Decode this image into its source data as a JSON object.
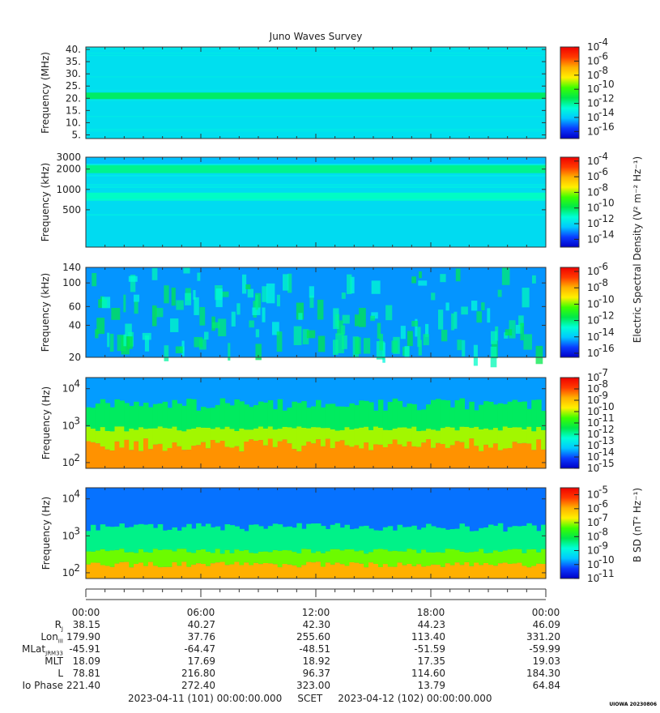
{
  "title": "Juno Waves Survey",
  "footer_tag": "UIOWA 20230806",
  "colorbar_shared_label": "Electric Spectral Density (V² m⁻² Hz⁻¹)",
  "colorbar_b_label": "B SD (nT² Hz⁻¹)",
  "colors": [
    "#0000c8",
    "#0a3cff",
    "#00c8ff",
    "#00ffd8",
    "#00e84a",
    "#3cff00",
    "#fff000",
    "#ffb000",
    "#ff3a00",
    "#f00000"
  ],
  "time_ticks": [
    "00:00",
    "06:00",
    "12:00",
    "18:00",
    "00:00"
  ],
  "ephemeris": [
    {
      "label": "R",
      "sub": "J",
      "values": [
        "38.15",
        "40.27",
        "42.30",
        "44.23",
        "46.09"
      ]
    },
    {
      "label": "Lon",
      "sub": "III",
      "values": [
        "179.90",
        "37.76",
        "255.60",
        "113.40",
        "331.20"
      ]
    },
    {
      "label": "MLat",
      "sub": "JRM33",
      "values": [
        "-45.91",
        "-64.47",
        "-48.51",
        "-51.59",
        "-59.99"
      ]
    },
    {
      "label": "MLT",
      "sub": "",
      "values": [
        "18.09",
        "17.69",
        "18.92",
        "17.35",
        "19.03"
      ]
    },
    {
      "label": "L",
      "sub": "",
      "values": [
        "78.81",
        "216.80",
        "96.37",
        "114.60",
        "184.30"
      ]
    },
    {
      "label": "Io Phase",
      "sub": "",
      "values": [
        "221.40",
        "272.40",
        "323.00",
        "13.79",
        "64.84"
      ]
    }
  ],
  "scet_text": "2023-04-11 (101) 00:00:00.000     SCET     2023-04-12 (102) 00:00:00.000",
  "chart_data": [
    {
      "type": "heatmap",
      "name": "HFR high",
      "ylabel": "Frequency (MHz)",
      "yscale": "linear",
      "ylim": [
        3.5,
        41
      ],
      "yticks": [
        "40.",
        "35.",
        "30.",
        "25.",
        "20.",
        "15.",
        "10.",
        "5."
      ],
      "ytick_values": [
        40,
        35,
        30,
        25,
        20,
        15,
        10,
        5
      ],
      "colorbar": {
        "ticks": [
          "-4",
          "-6",
          "-8",
          "-10",
          "-12",
          "-14",
          "-16"
        ],
        "range_log10": [
          -17,
          -4
        ]
      },
      "dominant_level_log10": -13.5,
      "bands": [
        {
          "freq_MHz": 21,
          "level_log10": -11.5
        }
      ]
    },
    {
      "type": "heatmap",
      "name": "HFR low",
      "ylabel": "Frequency (kHz)",
      "yscale": "log",
      "ylim": [
        140,
        3000
      ],
      "yticks": [
        "3000",
        "2000",
        "1000",
        "500"
      ],
      "ytick_values": [
        3000,
        2000,
        1000,
        500
      ],
      "colorbar": {
        "ticks": [
          "-4",
          "-6",
          "-8",
          "-10",
          "-12",
          "-14"
        ],
        "range_log10": [
          -15,
          -3.5
        ]
      },
      "dominant_level_log10": -12,
      "bands": [
        {
          "freq_kHz": 2000,
          "level_log10": -10.5
        },
        {
          "freq_kHz": 780,
          "level_log10": -11
        }
      ]
    },
    {
      "type": "heatmap",
      "name": "LFR high",
      "ylabel": "Frequency (kHz)",
      "yscale": "log",
      "ylim": [
        20,
        140
      ],
      "yticks": [
        "140",
        "100",
        "60",
        "40",
        "20"
      ],
      "ytick_values": [
        140,
        100,
        60,
        40,
        20
      ],
      "colorbar": {
        "ticks": [
          "-6",
          "-8",
          "-10",
          "-12",
          "-14",
          "-16"
        ],
        "range_log10": [
          -16.5,
          -5.5
        ]
      },
      "dominant_level_log10": -14.5,
      "note": "patchy emission streaks near 1e-13"
    },
    {
      "type": "heatmap",
      "name": "E low",
      "ylabel": "Frequency (Hz)",
      "yscale": "log",
      "ylim": [
        70,
        20000
      ],
      "yticks": [
        "10",
        "10",
        "10"
      ],
      "ytick_exponents": [
        "4",
        "3",
        "2"
      ],
      "ytick_values": [
        10000,
        1000,
        100
      ],
      "colorbar": {
        "ticks": [
          "-7",
          "-8",
          "-9",
          "-10",
          "-11",
          "-12",
          "-13",
          "-14",
          "-15"
        ],
        "range_log10": [
          -15,
          -7
        ]
      },
      "dominant_level_log10": -13.5,
      "low_freq_level_log10": -8
    },
    {
      "type": "heatmap",
      "name": "B",
      "ylabel": "Frequency (Hz)",
      "yscale": "log",
      "ylim": [
        70,
        20000
      ],
      "yticks": [
        "10",
        "10",
        "10"
      ],
      "ytick_exponents": [
        "4",
        "3",
        "2"
      ],
      "ytick_values": [
        10000,
        1000,
        100
      ],
      "colorbar": {
        "ticks": [
          "-5",
          "-6",
          "-7",
          "-8",
          "-9",
          "-10",
          "-11"
        ],
        "range_log10": [
          -11,
          -4.5
        ]
      },
      "dominant_level_log10": -10,
      "low_freq_level_log10": -5.5
    }
  ]
}
